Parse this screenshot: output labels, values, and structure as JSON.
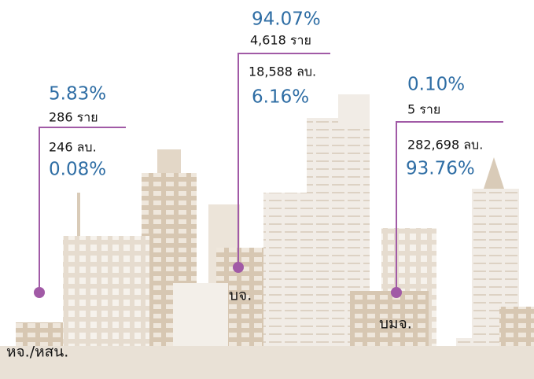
{
  "groups": [
    {
      "type_label": "หจ./หสน.",
      "count_pct": "5.83%",
      "count": "286 ราย",
      "capital": "246 ลบ.",
      "capital_pct": "0.08%"
    },
    {
      "type_label": "บจ.",
      "count_pct": "94.07%",
      "count": "4,618 ราย",
      "capital": "18,588 ลบ.",
      "capital_pct": "6.16%"
    },
    {
      "type_label": "บมจ.",
      "count_pct": "0.10%",
      "count": "5 ราย",
      "capital": "282,698 ลบ.",
      "capital_pct": "93.76%"
    }
  ]
}
